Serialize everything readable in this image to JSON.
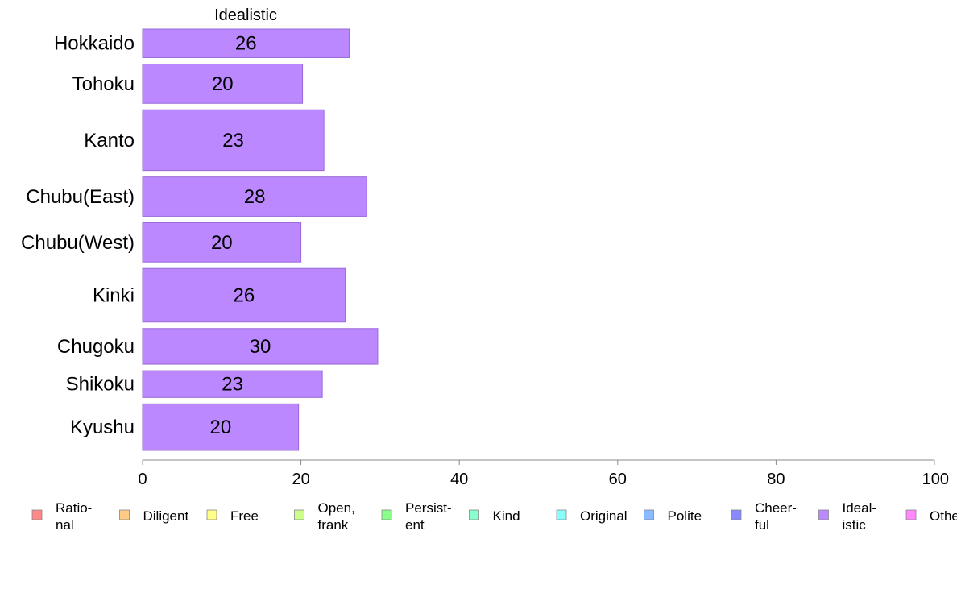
{
  "chart_data": {
    "type": "bar",
    "orientation": "horizontal",
    "title": "Idealistic",
    "categories": [
      "Hokkaido",
      "Tohoku",
      "Kanto",
      "Chubu(East)",
      "Chubu(West)",
      "Kinki",
      "Chugoku",
      "Shikoku",
      "Kyushu"
    ],
    "values": [
      26,
      20,
      23,
      28,
      20,
      26,
      30,
      23,
      20
    ],
    "plotted_values": [
      26.1,
      20.2,
      22.9,
      28.3,
      20.0,
      25.6,
      29.7,
      22.7,
      19.7
    ],
    "category_weights": [
      0.8,
      1.1,
      1.7,
      1.1,
      1.1,
      1.5,
      1.0,
      0.75,
      1.3
    ],
    "bar_color": "#bb88ff",
    "bar_edge_color": "#9a6ad8",
    "xlim": [
      0,
      100
    ],
    "xticks": [
      0,
      20,
      40,
      60,
      80,
      100
    ],
    "xlabel": "",
    "ylabel": "",
    "legend": {
      "position": "bottom",
      "entries": [
        {
          "label": "Ratio-\nnal",
          "color": "#ff8888"
        },
        {
          "label": "Diligent",
          "color": "#ffcc88"
        },
        {
          "label": "Free",
          "color": "#ffff88"
        },
        {
          "label": "Open,\nfrank",
          "color": "#ccff88"
        },
        {
          "label": "Persist-\nent",
          "color": "#88ff88"
        },
        {
          "label": "Kind",
          "color": "#88ffcc"
        },
        {
          "label": "Original",
          "color": "#88ffff"
        },
        {
          "label": "Polite",
          "color": "#88bbff"
        },
        {
          "label": "Cheer-\nful",
          "color": "#8888ff"
        },
        {
          "label": "Ideal-\nistic",
          "color": "#bb88ff"
        },
        {
          "label": "Others",
          "color": "#ff88ff"
        }
      ]
    }
  }
}
